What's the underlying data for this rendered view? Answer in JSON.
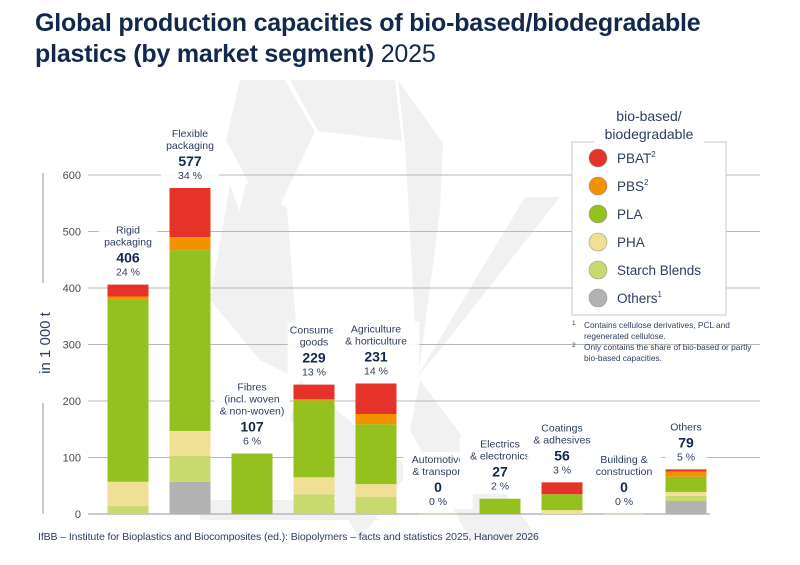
{
  "title": {
    "line1": "Global production capacities of bio-based/biodegradable",
    "line2": "plastics (by market segment)",
    "year": "2025"
  },
  "source": "IfBB – Institute for Bioplastics and Biocomposites (ed.): Biopolymers – facts and statistics 2025, Hanover 2026",
  "colors": {
    "PBAT": "#e5332a",
    "PBS": "#f39200",
    "PLA": "#95c11f",
    "PHA": "#f0e096",
    "Starch Blends": "#c8d96f",
    "Others": "#b2b2b2",
    "text_dark": "#13294b",
    "text_mid": "#2d3e5e",
    "grid": "#b7b7b7",
    "watermark": "#f1f1f1"
  },
  "legend": {
    "title_line1": "bio-based/",
    "title_line2": "biodegradable",
    "items": [
      {
        "key": "PBAT",
        "label": "PBAT",
        "sup": "2"
      },
      {
        "key": "PBS",
        "label": "PBS",
        "sup": "2"
      },
      {
        "key": "PLA",
        "label": "PLA",
        "sup": ""
      },
      {
        "key": "PHA",
        "label": "PHA",
        "sup": ""
      },
      {
        "key": "Starch Blends",
        "label": "Starch Blends",
        "sup": ""
      },
      {
        "key": "Others",
        "label": "Others",
        "sup": "1"
      }
    ]
  },
  "footnotes": [
    {
      "mark": "1",
      "text": "Contains cellulose derivatives, PCL and regenerated cellulose."
    },
    {
      "mark": "2",
      "text": "Only contains the share of bio-based or partly bio-based  capacities."
    }
  ],
  "chart_data": {
    "type": "bar",
    "stacked": true,
    "title": "Global production capacities of bio-based/biodegradable plastics (by market segment) 2025",
    "ylabel": "in 1 000 t",
    "xlabel": "",
    "ylim": [
      0,
      600
    ],
    "yticks": [
      0,
      100,
      200,
      300,
      400,
      500,
      600
    ],
    "grid": true,
    "legend_position": "right",
    "categories": [
      {
        "label_lines": [
          "Rigid",
          "packaging"
        ],
        "total": "406",
        "share": "24 %"
      },
      {
        "label_lines": [
          "Flexible",
          "packaging"
        ],
        "total": "577",
        "share": "34 %"
      },
      {
        "label_lines": [
          "Fibres",
          "(incl. woven",
          "& non-woven)"
        ],
        "total": "107",
        "share": "6 %"
      },
      {
        "label_lines": [
          "Consumer",
          "goods"
        ],
        "total": "229",
        "share": "13 %"
      },
      {
        "label_lines": [
          "Agriculture",
          "& horticulture"
        ],
        "total": "231",
        "share": "14 %"
      },
      {
        "label_lines": [
          "Automotive",
          "& transport"
        ],
        "total": "0",
        "share": "0 %"
      },
      {
        "label_lines": [
          "Electrics",
          "& electronics"
        ],
        "total": "27",
        "share": "2 %"
      },
      {
        "label_lines": [
          "Coatings",
          "& adhesives"
        ],
        "total": "56",
        "share": "3 %"
      },
      {
        "label_lines": [
          "Building &",
          "construction"
        ],
        "total": "0",
        "share": "0 %"
      },
      {
        "label_lines": [
          "Others"
        ],
        "total": "79",
        "share": "5 %"
      }
    ],
    "series": [
      {
        "name": "Others",
        "values": [
          0,
          57,
          0,
          0,
          0,
          0,
          0,
          0,
          0,
          23
        ]
      },
      {
        "name": "Starch Blends",
        "values": [
          14,
          46,
          0,
          35,
          30,
          0,
          0,
          0,
          0,
          9
        ]
      },
      {
        "name": "PHA",
        "values": [
          43,
          44,
          0,
          30,
          23,
          0.5,
          0,
          7,
          0.5,
          7
        ]
      },
      {
        "name": "PLA",
        "values": [
          322,
          320,
          107,
          136,
          106,
          0,
          27,
          28,
          0,
          27
        ]
      },
      {
        "name": "PBS",
        "values": [
          6,
          23,
          0,
          2,
          18,
          0,
          0,
          0,
          0,
          9
        ]
      },
      {
        "name": "PBAT",
        "values": [
          21,
          87,
          0,
          26,
          54,
          0,
          0,
          21,
          0,
          4
        ]
      }
    ]
  }
}
